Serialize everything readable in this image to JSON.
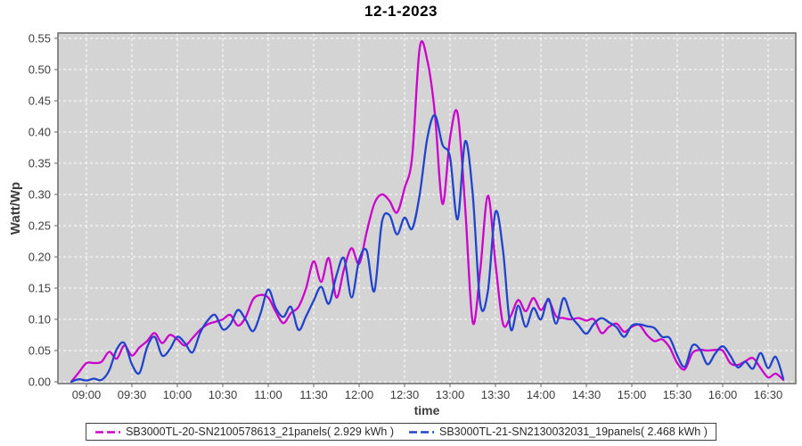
{
  "title": "12-1-2023",
  "chart_data": {
    "type": "line",
    "title": "12-1-2023",
    "xlabel": "time",
    "ylabel": "Watt/Wp",
    "plot_bg": "#d4d4d4",
    "grid": "dashed-white, both axes, on",
    "legend_position": "bottom-center",
    "ylim": [
      0.0,
      0.559
    ],
    "y_ticks": [
      "0.00",
      "0.05",
      "0.10",
      "0.15",
      "0.20",
      "0.25",
      "0.30",
      "0.35",
      "0.40",
      "0.45",
      "0.50",
      "0.55"
    ],
    "x_ticks": [
      "09:00",
      "09:30",
      "10:00",
      "10:30",
      "11:00",
      "11:30",
      "12:00",
      "12:30",
      "13:00",
      "13:30",
      "14:00",
      "14:30",
      "15:00",
      "15:30",
      "16:00",
      "16:30"
    ],
    "x_start": "08:50",
    "x_step_minutes": 5,
    "series": [
      {
        "name": "SB3000TL-20-SN2100578613_21panels( 2.929 kWh )",
        "color": "#cc00cc",
        "energy_kwh": 2.929,
        "values": [
          0.0,
          0.015,
          0.03,
          0.03,
          0.032,
          0.048,
          0.037,
          0.058,
          0.042,
          0.055,
          0.065,
          0.078,
          0.062,
          0.075,
          0.068,
          0.058,
          0.07,
          0.083,
          0.092,
          0.096,
          0.1,
          0.107,
          0.09,
          0.103,
          0.132,
          0.139,
          0.135,
          0.112,
          0.094,
          0.11,
          0.12,
          0.15,
          0.193,
          0.16,
          0.198,
          0.135,
          0.18,
          0.214,
          0.189,
          0.24,
          0.285,
          0.3,
          0.29,
          0.271,
          0.31,
          0.36,
          0.535,
          0.515,
          0.43,
          0.285,
          0.39,
          0.43,
          0.28,
          0.095,
          0.18,
          0.298,
          0.19,
          0.093,
          0.105,
          0.131,
          0.113,
          0.134,
          0.115,
          0.13,
          0.105,
          0.102,
          0.1,
          0.102,
          0.098,
          0.1,
          0.078,
          0.088,
          0.093,
          0.08,
          0.088,
          0.091,
          0.075,
          0.065,
          0.068,
          0.055,
          0.03,
          0.02,
          0.046,
          0.051,
          0.05,
          0.051,
          0.05,
          0.03,
          0.027,
          0.033,
          0.038,
          0.022,
          0.007,
          0.013,
          0.003
        ]
      },
      {
        "name": "SB3000TL-21-SN2130032031_19panels( 2.468 kWh )",
        "color": "#2244cc",
        "energy_kwh": 2.468,
        "values": [
          0.0,
          0.004,
          0.002,
          0.005,
          0.003,
          0.018,
          0.052,
          0.062,
          0.028,
          0.014,
          0.055,
          0.072,
          0.042,
          0.052,
          0.072,
          0.062,
          0.047,
          0.078,
          0.098,
          0.107,
          0.084,
          0.092,
          0.115,
          0.1,
          0.081,
          0.11,
          0.148,
          0.118,
          0.104,
          0.12,
          0.083,
          0.105,
          0.13,
          0.152,
          0.125,
          0.17,
          0.198,
          0.135,
          0.195,
          0.21,
          0.145,
          0.255,
          0.267,
          0.236,
          0.263,
          0.245,
          0.3,
          0.39,
          0.427,
          0.38,
          0.36,
          0.26,
          0.385,
          0.3,
          0.125,
          0.145,
          0.272,
          0.21,
          0.085,
          0.122,
          0.088,
          0.118,
          0.1,
          0.133,
          0.093,
          0.134,
          0.105,
          0.09,
          0.077,
          0.093,
          0.102,
          0.095,
          0.087,
          0.072,
          0.09,
          0.092,
          0.089,
          0.086,
          0.072,
          0.07,
          0.042,
          0.024,
          0.058,
          0.052,
          0.028,
          0.045,
          0.057,
          0.042,
          0.023,
          0.032,
          0.021,
          0.046,
          0.022,
          0.04,
          0.005
        ]
      }
    ]
  }
}
